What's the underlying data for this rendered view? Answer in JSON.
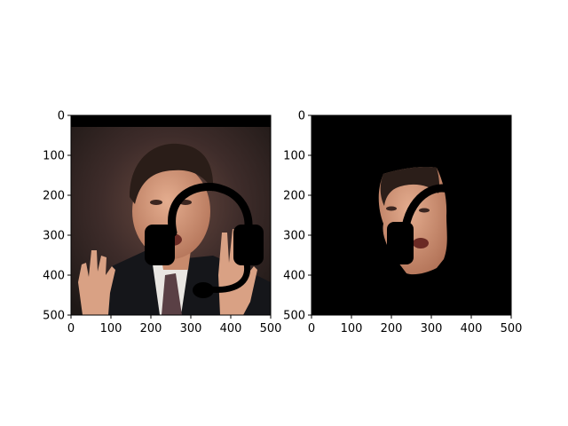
{
  "chart_data": [
    {
      "type": "image",
      "content": "photo of a man with a headphone overlay",
      "xlim": [
        0,
        500
      ],
      "ylim": [
        500,
        0
      ],
      "xticks": [
        0,
        100,
        200,
        300,
        400,
        500
      ],
      "yticks": [
        0,
        100,
        200,
        300,
        400,
        500
      ],
      "xtick_labels": [
        "0",
        "100",
        "200",
        "300",
        "400",
        "500"
      ],
      "ytick_labels": [
        "0",
        "100",
        "200",
        "300",
        "400",
        "500"
      ]
    },
    {
      "type": "image",
      "content": "segmented face mask on black background with headphone overlay",
      "xlim": [
        0,
        500
      ],
      "ylim": [
        500,
        0
      ],
      "xticks": [
        0,
        100,
        200,
        300,
        400,
        500
      ],
      "yticks": [
        0,
        100,
        200,
        300,
        400,
        500
      ],
      "xtick_labels": [
        "0",
        "100",
        "200",
        "300",
        "400",
        "500"
      ],
      "ytick_labels": [
        "0",
        "100",
        "200",
        "300",
        "400",
        "500"
      ]
    }
  ]
}
